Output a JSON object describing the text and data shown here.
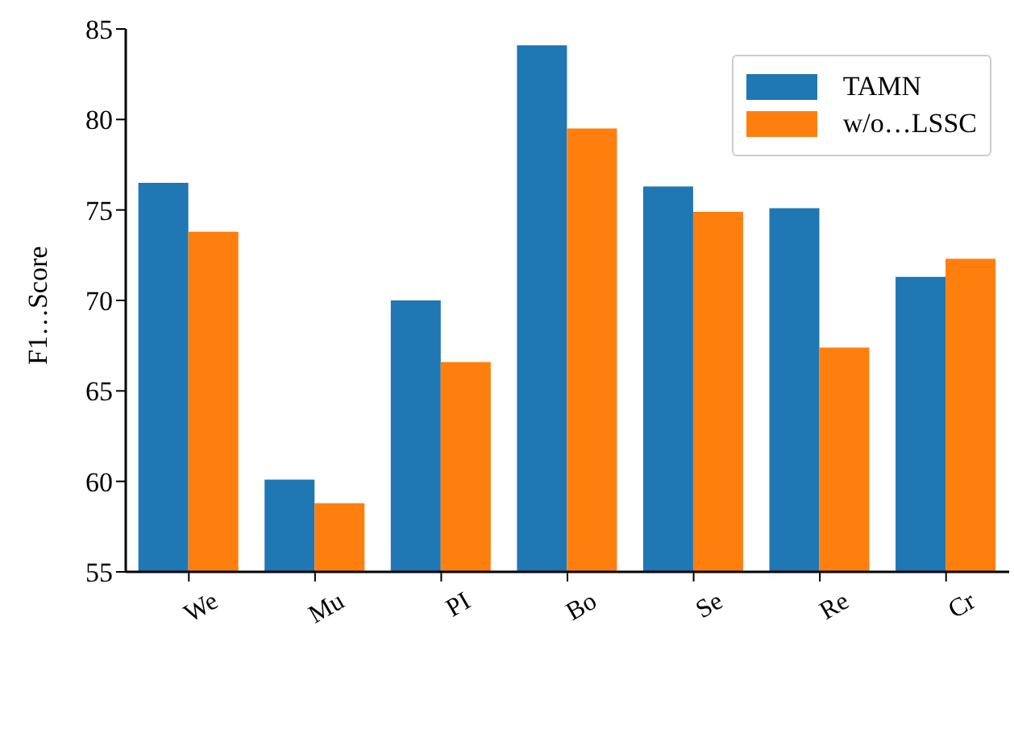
{
  "chart_data": {
    "type": "bar",
    "ylabel": "F1…Score",
    "categories": [
      "We",
      "Mu",
      "PI",
      "Bo",
      "Se",
      "Re",
      "Cr"
    ],
    "series": [
      {
        "name": "TAMN",
        "color": "#1f77b4",
        "values": [
          76.5,
          60.1,
          70.0,
          84.1,
          76.3,
          75.1,
          71.3
        ]
      },
      {
        "name": "w/o…LSSC",
        "color": "#ff7f0e",
        "values": [
          73.8,
          58.8,
          66.6,
          79.5,
          74.9,
          67.4,
          72.3
        ]
      }
    ],
    "ylim": [
      55,
      85
    ],
    "yticks": [
      55,
      60,
      65,
      70,
      75,
      80,
      85
    ],
    "grid": false,
    "legend": "top right"
  }
}
